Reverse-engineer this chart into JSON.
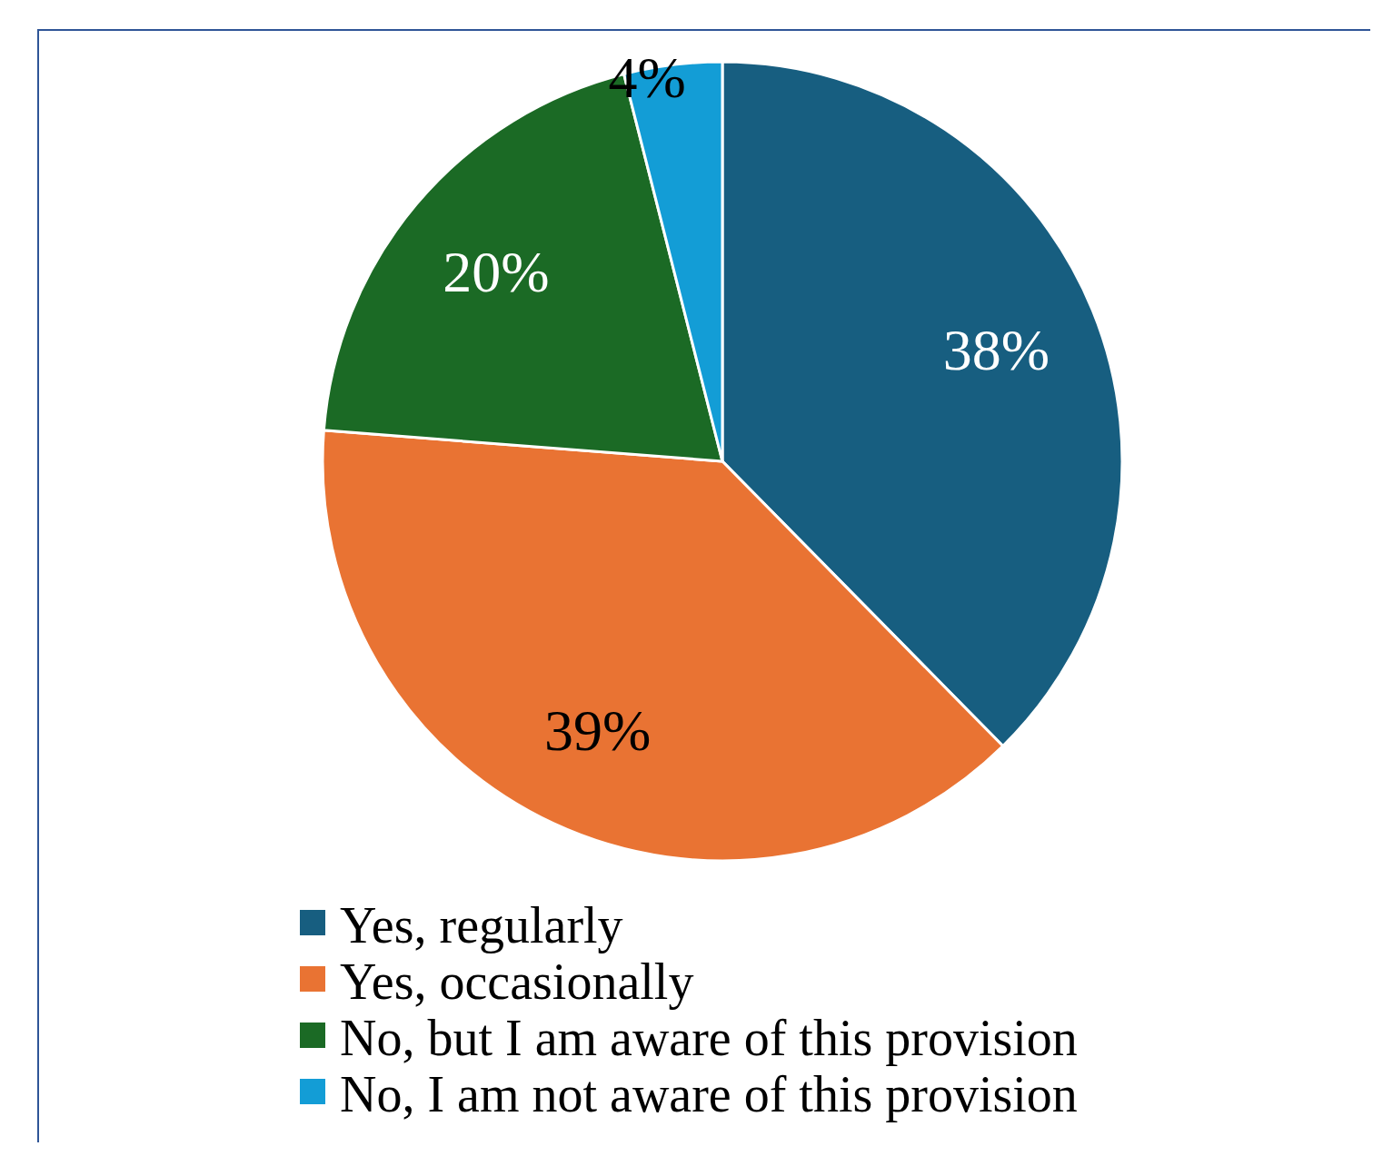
{
  "chart_data": {
    "type": "pie",
    "categories": [
      "Yes, regularly",
      "Yes, occasionally",
      "No, but I am aware of this provision",
      "No, I am not aware of this provision"
    ],
    "values": [
      38,
      39,
      20,
      4
    ],
    "colors": [
      "#175e80",
      "#e97333",
      "#1b6a25",
      "#139dd6"
    ],
    "value_labels": [
      "38%",
      "39%",
      "20%",
      "4%"
    ],
    "legend": "bottom"
  }
}
